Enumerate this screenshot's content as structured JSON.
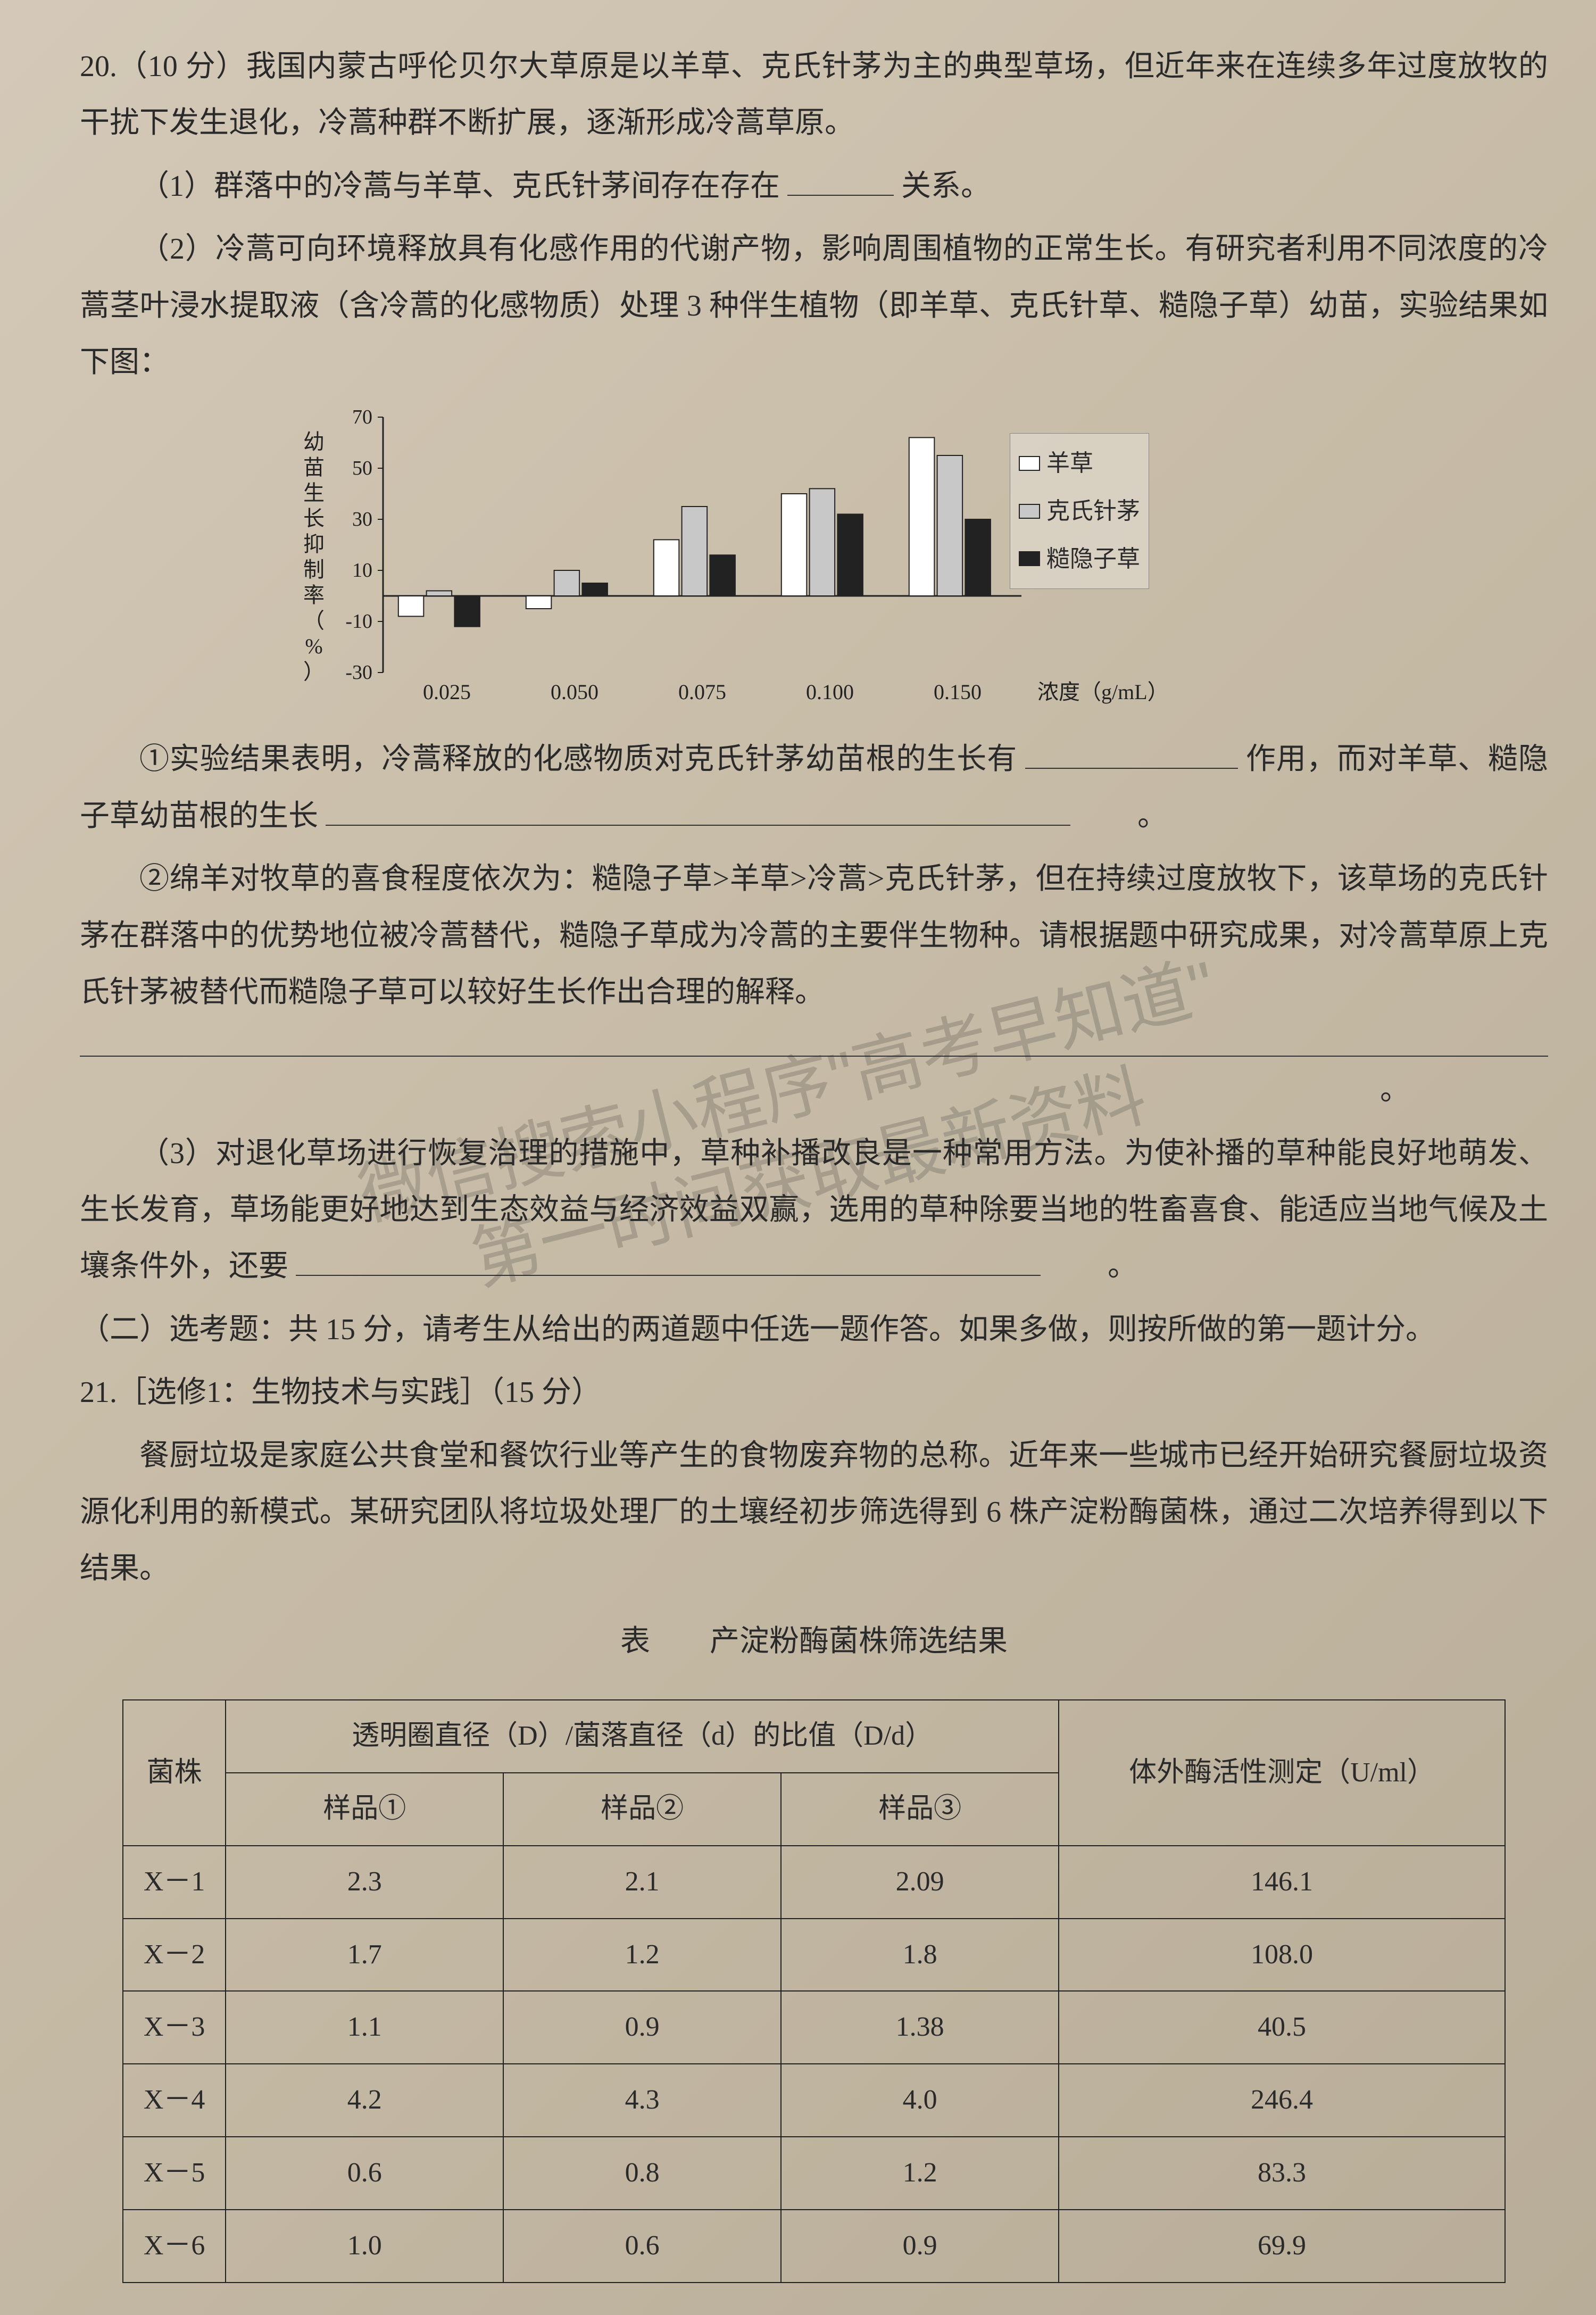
{
  "q20": {
    "number": "20.（10 分）",
    "intro": "我国内蒙古呼伦贝尔大草原是以羊草、克氏针茅为主的典型草场，但近年来在连续多年过度放牧的干扰下发生退化，冷蒿种群不断扩展，逐渐形成冷蒿草原。",
    "p1": "（1）群落中的冷蒿与羊草、克氏针茅间存在存在",
    "p1_tail": "关系。",
    "p2a": "（2）冷蒿可向环境释放具有化感作用的代谢产物，影响周围植物的正常生长。有研究者利用不同浓度的冷蒿茎叶浸水提取液（含冷蒿的化感物质）处理 3 种伴生植物（即羊草、克氏针草、糙隐子草）幼苗，实验结果如下图：",
    "q2_1a": "①实验结果表明，冷蒿释放的化感物质对克氏针茅幼苗根的生长有",
    "q2_1b": "作用，而对羊草、糙隐子草幼苗根的生长",
    "q2_1c": "。",
    "q2_2": "②绵羊对牧草的喜食程度依次为：糙隐子草>羊草>冷蒿>克氏针茅，但在持续过度放牧下，该草场的克氏针茅在群落中的优势地位被冷蒿替代，糙隐子草成为冷蒿的主要伴生物种。请根据题中研究成果，对冷蒿草原上克氏针茅被替代而糙隐子草可以较好生长作出合理的解释。",
    "q3a": "（3）对退化草场进行恢复治理的措施中，草种补播改良是一种常用方法。为使补播的草种能良好地萌发、生长发育，草场能更好地达到生态效益与经济效益双赢，选用的草种除要当地的牲畜喜食、能适应当地气候及土壤条件外，还要",
    "q3b": "。"
  },
  "section2": "（二）选考题：共 15 分，请考生从给出的两道题中任选一题作答。如果多做，则按所做的第一题计分。",
  "q21": {
    "header": "21.［选修1：生物技术与实践］（15 分）",
    "intro": "餐厨垃圾是家庭公共食堂和餐饮行业等产生的食物废弃物的总称。近年来一些城市已经开始研究餐厨垃圾资源化利用的新模式。某研究团队将垃圾处理厂的土壤经初步筛选得到 6 株产淀粉酶菌株，通过二次培养得到以下结果。"
  },
  "table": {
    "caption": "表　　产淀粉酶菌株筛选结果",
    "col_strain": "菌株",
    "col_ratio_header": "透明圈直径（D）/菌落直径（d）的比值（D/d）",
    "col_sample1": "样品①",
    "col_sample2": "样品②",
    "col_sample3": "样品③",
    "col_activity": "体外酶活性测定（U/ml）",
    "rows": [
      {
        "strain": "X－1",
        "s1": "2.3",
        "s2": "2.1",
        "s3": "2.09",
        "act": "146.1"
      },
      {
        "strain": "X－2",
        "s1": "1.7",
        "s2": "1.2",
        "s3": "1.8",
        "act": "108.0"
      },
      {
        "strain": "X－3",
        "s1": "1.1",
        "s2": "0.9",
        "s3": "1.38",
        "act": "40.5"
      },
      {
        "strain": "X－4",
        "s1": "4.2",
        "s2": "4.3",
        "s3": "4.0",
        "act": "246.4"
      },
      {
        "strain": "X－5",
        "s1": "0.6",
        "s2": "0.8",
        "s3": "1.2",
        "act": "83.3"
      },
      {
        "strain": "X－6",
        "s1": "1.0",
        "s2": "0.6",
        "s3": "0.9",
        "act": "69.9"
      }
    ]
  },
  "chart": {
    "type": "bar",
    "categories": [
      "0.025",
      "0.050",
      "0.075",
      "0.100",
      "0.150"
    ],
    "x_label": "浓度（g/mL）",
    "y_label": "幼苗生长抑制率（%）",
    "y_ticks": [
      -30,
      -10,
      10,
      30,
      50,
      70
    ],
    "ylim": [
      -30,
      70
    ],
    "series": [
      {
        "name": "羊草",
        "color": "#ffffff",
        "stroke": "#222222",
        "values": [
          -8,
          -5,
          22,
          40,
          62
        ]
      },
      {
        "name": "克氏针茅",
        "color": "#c8c8c8",
        "stroke": "#222222",
        "values": [
          2,
          10,
          35,
          42,
          55
        ]
      },
      {
        "name": "糙隐子草",
        "color": "#222222",
        "stroke": "#222222",
        "values": [
          -12,
          5,
          16,
          32,
          30
        ]
      }
    ],
    "bar_width": 0.22,
    "background_color": "transparent",
    "grid": false
  },
  "watermark": {
    "line1": "微信搜索小程序\"高考早知道\"",
    "line2": "第一时间获取最新资料"
  }
}
